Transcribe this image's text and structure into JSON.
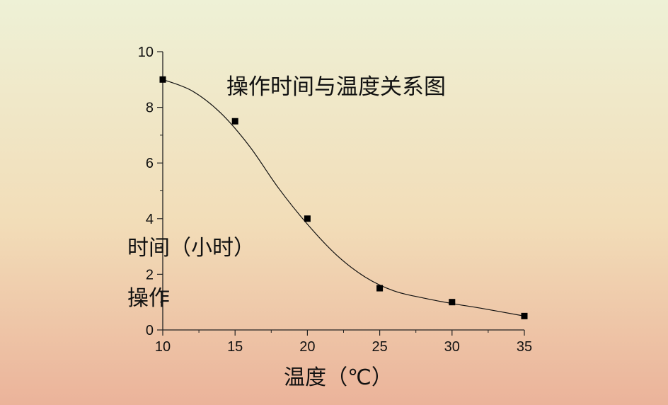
{
  "chart_data": {
    "type": "scatter",
    "title": "操作时间与温度关系图",
    "xlabel": "温度（℃）",
    "ylabel_line1": "时间（小时）",
    "ylabel_line2": "操作",
    "xlim": [
      10,
      35
    ],
    "ylim": [
      0,
      10
    ],
    "xticks": [
      10,
      15,
      20,
      25,
      30,
      35
    ],
    "yticks": [
      0,
      2,
      4,
      6,
      8,
      10
    ],
    "points": [
      {
        "x": 10,
        "y": 9.0
      },
      {
        "x": 15,
        "y": 7.5
      },
      {
        "x": 20,
        "y": 4.0
      },
      {
        "x": 25,
        "y": 1.5
      },
      {
        "x": 30,
        "y": 1.0
      },
      {
        "x": 35,
        "y": 0.5
      }
    ],
    "fit_curve": [
      {
        "x": 10,
        "y": 9.0
      },
      {
        "x": 12,
        "y": 8.6
      },
      {
        "x": 14,
        "y": 7.8
      },
      {
        "x": 16,
        "y": 6.6
      },
      {
        "x": 18,
        "y": 5.1
      },
      {
        "x": 20,
        "y": 3.8
      },
      {
        "x": 22,
        "y": 2.7
      },
      {
        "x": 24,
        "y": 1.9
      },
      {
        "x": 26,
        "y": 1.4
      },
      {
        "x": 28,
        "y": 1.15
      },
      {
        "x": 30,
        "y": 0.95
      },
      {
        "x": 32,
        "y": 0.78
      },
      {
        "x": 35,
        "y": 0.5
      }
    ],
    "grid": false,
    "colors": {
      "axis": "#222222",
      "marker": "#000000",
      "curve": "#111111"
    }
  }
}
